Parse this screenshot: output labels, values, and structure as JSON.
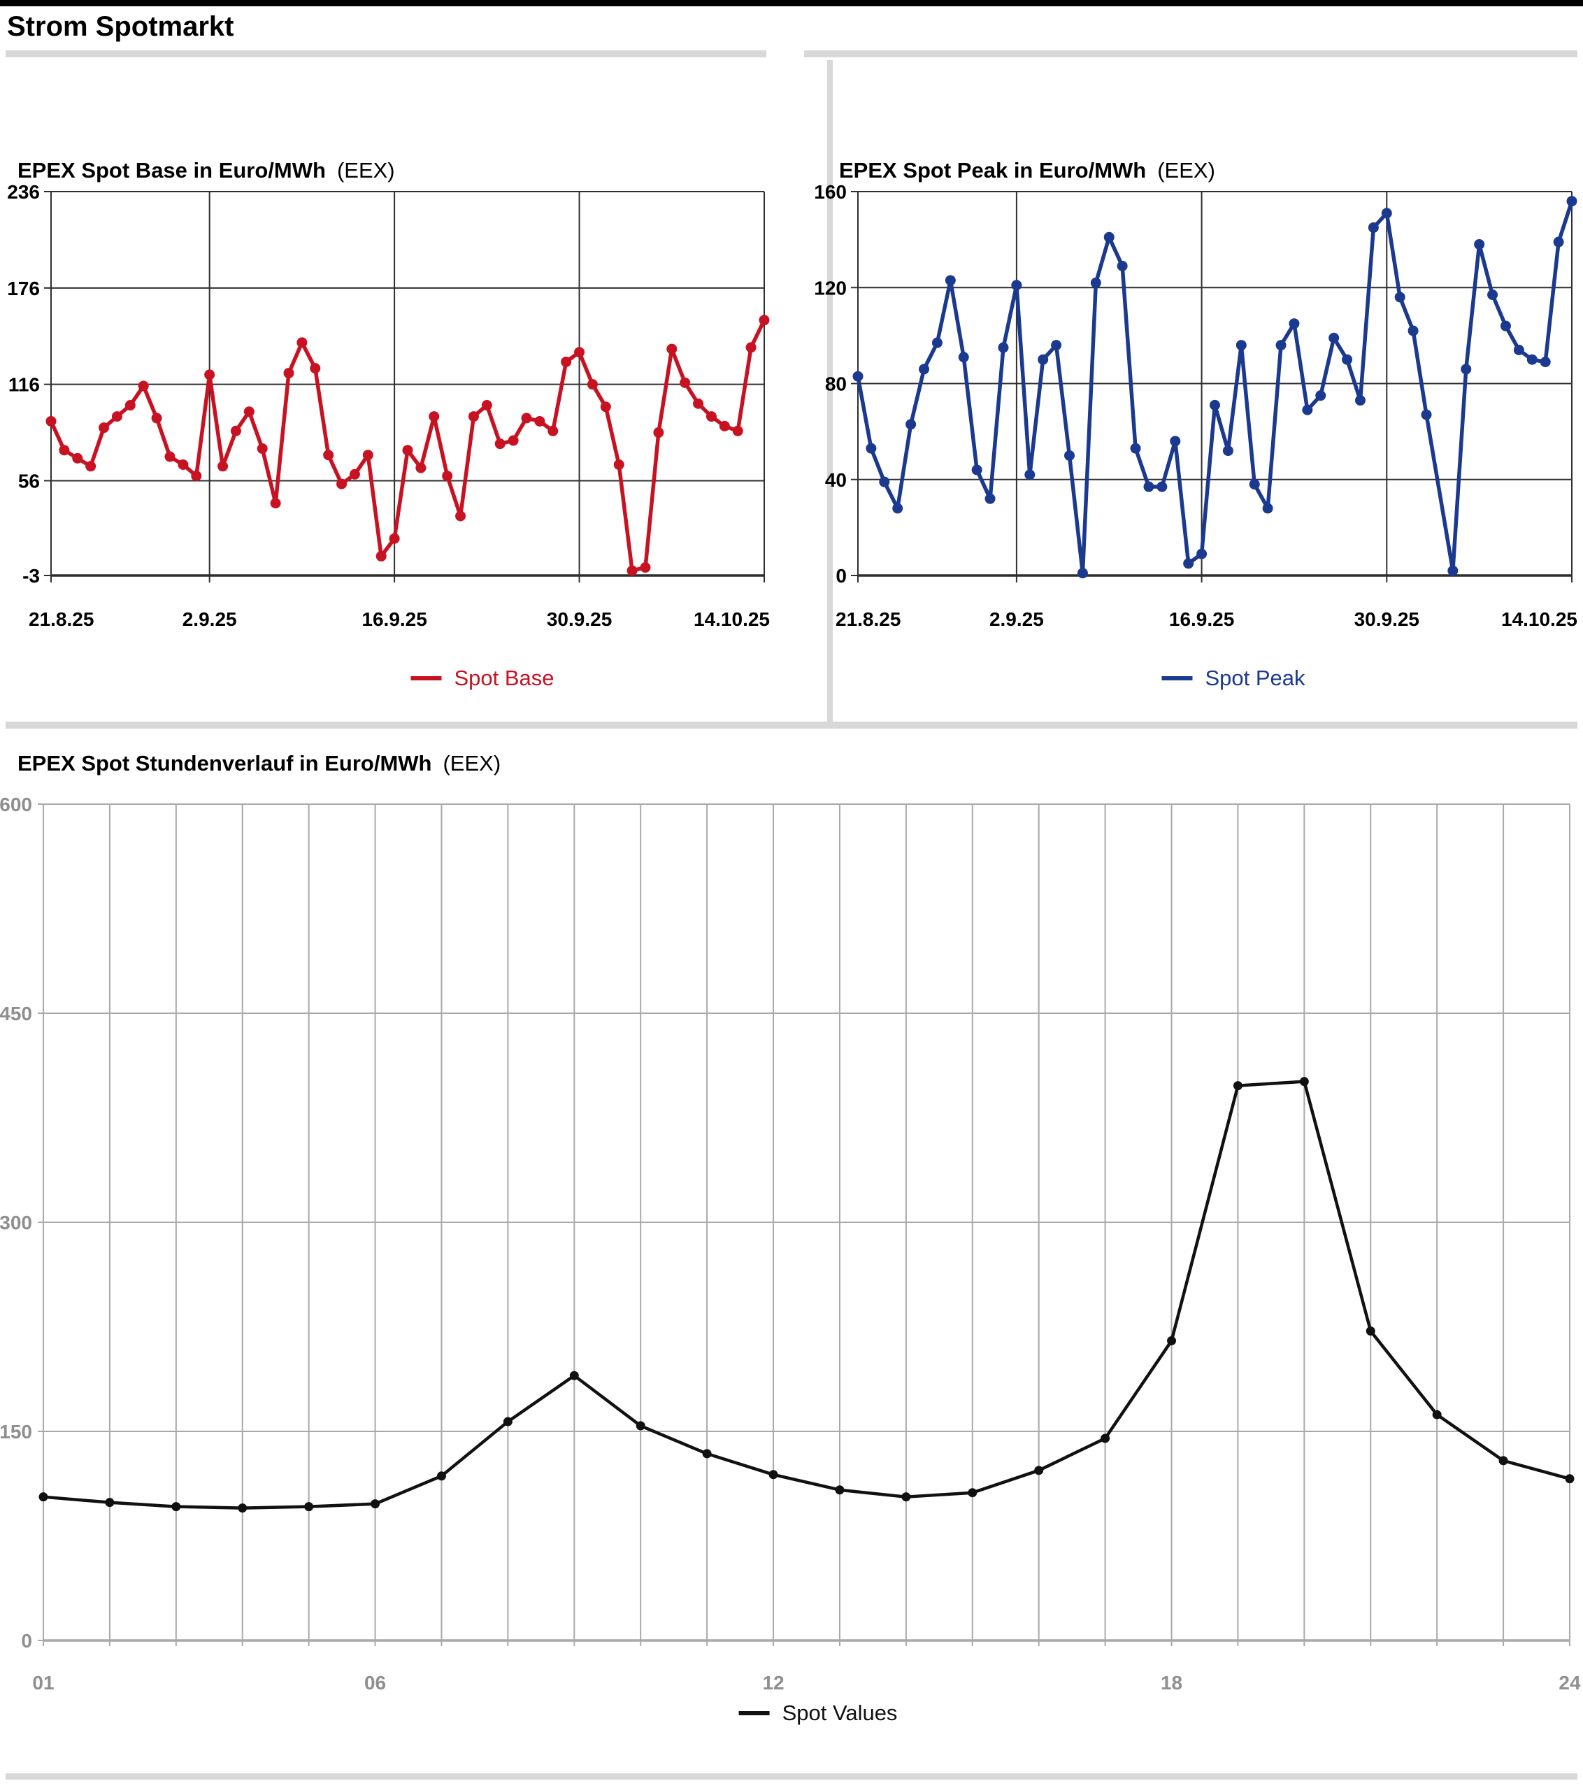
{
  "page_title": "Strom Spotmarkt",
  "colors": {
    "base_line": "#c81222",
    "peak_line": "#1b3a8f",
    "hour_line": "#111111",
    "grid_dark": "#2e2e2e",
    "grid_light": "#a9a9a9",
    "label_gray": "#8f8f8f",
    "divider_gray": "#d8d8d8"
  },
  "chart_data": [
    {
      "type": "line",
      "title": "EPEX Spot Base in Euro/MWh",
      "title_suffix": "(EEX)",
      "legend": "Spot Base",
      "color": "#c81222",
      "ylim": [
        -3,
        236
      ],
      "yticks": [
        {
          "v": 236,
          "label": "236"
        },
        {
          "v": 176,
          "label": "176"
        },
        {
          "v": 116,
          "label": "116"
        },
        {
          "v": 56,
          "label": "56"
        },
        {
          "v": -3,
          "label": "-3"
        }
      ],
      "xticks": [
        {
          "i": 0,
          "label": "21.8.25"
        },
        {
          "i": 12,
          "label": "2.9.25"
        },
        {
          "i": 26,
          "label": "16.9.25"
        },
        {
          "i": 40,
          "label": "30.9.25"
        },
        {
          "i": 54,
          "label": "14.10.25"
        }
      ],
      "values": [
        93,
        75,
        70,
        65,
        89,
        96,
        103,
        115,
        95,
        71,
        66,
        59,
        122,
        65,
        87,
        99,
        76,
        42,
        123,
        142,
        126,
        72,
        54,
        60,
        72,
        9,
        20,
        75,
        64,
        96,
        59,
        34,
        96,
        103,
        79,
        81,
        95,
        93,
        87,
        130,
        136,
        116,
        102,
        66,
        0,
        2,
        86,
        138,
        117,
        104,
        96,
        90,
        87,
        139,
        156
      ]
    },
    {
      "type": "line",
      "title": "EPEX Spot Peak in Euro/MWh",
      "title_suffix": "(EEX)",
      "legend": "Spot Peak",
      "color": "#1b3a8f",
      "ylim": [
        0,
        160
      ],
      "yticks": [
        {
          "v": 160,
          "label": "160"
        },
        {
          "v": 120,
          "label": "120"
        },
        {
          "v": 80,
          "label": "80"
        },
        {
          "v": 40,
          "label": "40"
        },
        {
          "v": 0,
          "label": "0"
        }
      ],
      "xticks": [
        {
          "i": 0,
          "label": "21.8.25"
        },
        {
          "i": 12,
          "label": "2.9.25"
        },
        {
          "i": 26,
          "label": "16.9.25"
        },
        {
          "i": 40,
          "label": "30.9.25"
        },
        {
          "i": 54,
          "label": "14.10.25"
        }
      ],
      "values": [
        83,
        53,
        39,
        28,
        63,
        86,
        97,
        123,
        91,
        44,
        32,
        95,
        121,
        42,
        90,
        96,
        50,
        1,
        122,
        141,
        129,
        53,
        37,
        37,
        56,
        5,
        9,
        71,
        52,
        96,
        38,
        28,
        96,
        105,
        69,
        75,
        99,
        90,
        73,
        145,
        151,
        116,
        102,
        67,
        null,
        2,
        86,
        138,
        117,
        104,
        94,
        90,
        89,
        139,
        156
      ]
    },
    {
      "type": "line",
      "title": "EPEX Spot Stundenverlauf in Euro/MWh",
      "title_suffix": "(EEX)",
      "legend": "Spot Values",
      "color": "#111111",
      "ylim": [
        0,
        600
      ],
      "yticks": [
        {
          "v": 600,
          "label": "600"
        },
        {
          "v": 450,
          "label": "450"
        },
        {
          "v": 300,
          "label": "300"
        },
        {
          "v": 150,
          "label": "150"
        },
        {
          "v": 0,
          "label": "0"
        }
      ],
      "xticks": [
        {
          "i": 0,
          "label": "01"
        },
        {
          "i": 5,
          "label": "06"
        },
        {
          "i": 11,
          "label": "12"
        },
        {
          "i": 17,
          "label": "18"
        },
        {
          "i": 23,
          "label": "24"
        }
      ],
      "values": [
        103,
        99,
        96,
        95,
        96,
        98,
        118,
        157,
        190,
        154,
        134,
        119,
        108,
        103,
        106,
        122,
        145,
        215,
        398,
        401,
        222,
        162,
        129,
        116
      ]
    }
  ]
}
